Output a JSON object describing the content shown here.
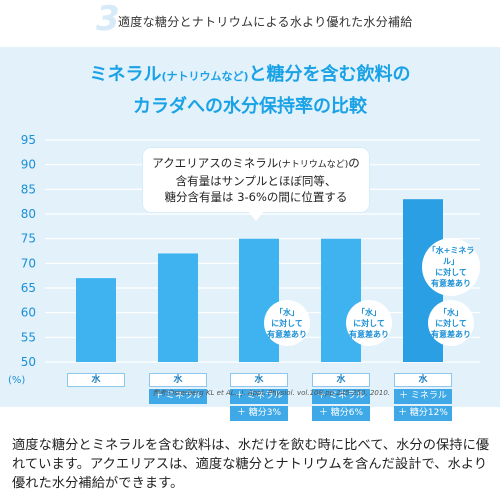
{
  "step_number": "3",
  "top_caption": "適度な糖分とナトリウムによる水より優れた水分補給",
  "title": {
    "line1_a": "ミネラル",
    "line1_small": "(ナトリウムなど)",
    "line1_b": "と糖分を含む飲料の",
    "line2": "カラダへの水分保持率の比較"
  },
  "callout": {
    "line1_a": "アクエリアスのミネラル",
    "line1_small": "(ナトリウムなど)",
    "line1_b": "の",
    "line2": "含有量はサンプルとほぼ同等、",
    "line3": "糖分含有量は 3-6%の間に位置する"
  },
  "badges": [
    {
      "lines": [
        "「水」",
        "に対して",
        "有意差あり"
      ]
    },
    {
      "lines": [
        "「水」",
        "に対して",
        "有意差あり"
      ]
    },
    {
      "lines": [
        "「水」",
        "に対して",
        "有意差あり"
      ]
    },
    {
      "lines": [
        "「水+ミネラル」",
        "に対して",
        "有意差あり"
      ]
    }
  ],
  "citation": "参考:Osterberg KL et AL., J. Appl. Physiol. vol.108,pp.245-250, 2010.",
  "categories": [
    {
      "base": "水",
      "chips": []
    },
    {
      "base": "水",
      "chips": [
        "＋ ミネラル"
      ]
    },
    {
      "base": "水",
      "chips": [
        "＋ ミネラル",
        "＋ 糖分3%"
      ]
    },
    {
      "base": "水",
      "chips": [
        "＋ ミネラル",
        "＋ 糖分6%"
      ]
    },
    {
      "base": "水",
      "chips": [
        "＋ ミネラル",
        "＋ 糖分12%"
      ]
    }
  ],
  "bottom_text": "適度な糖分とミネラルを含む飲料は、水だけを飲む時に比べて、水分の保持に優れています。アクエリアスは、適度な糖分とナトリウムを含んだ設計で、水より優れた水分補給ができます。",
  "colors": {
    "bar_light": "#3fb3f0",
    "bar_dark": "#2a9fe3",
    "accent": "#1aa2e6",
    "panel": "#e3f1fb"
  },
  "chart_data": {
    "type": "bar",
    "categories": [
      "水",
      "水＋ミネラル",
      "水＋ミネラル＋糖分3%",
      "水＋ミネラル＋糖分6%",
      "水＋ミネラル＋糖分12%"
    ],
    "values": [
      67,
      72,
      75,
      75,
      83
    ],
    "ylabel": "(%)",
    "ylim": [
      50,
      95
    ],
    "yticks": [
      50,
      55,
      60,
      65,
      70,
      75,
      80,
      85,
      90,
      95
    ],
    "grid": true
  }
}
